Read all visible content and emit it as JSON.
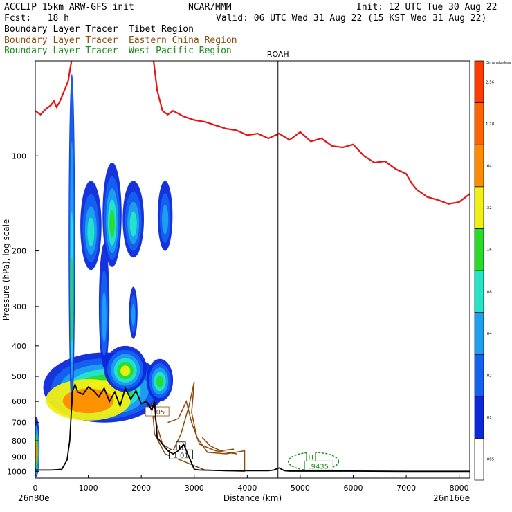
{
  "header": {
    "line1_left": "ACCLIP 15km ARW-GFS init",
    "line1_center": "NCAR/MMM",
    "line1_right": "Init: 12 UTC Tue 30 Aug 22",
    "line2_left": "Fcst:   18 h",
    "line2_right": "Valid: 06 UTC Wed 31 Aug 22 (15 KST Wed 31 Aug 22)"
  },
  "legend": [
    {
      "label": "Boundary Layer Tracer  Tibet Region",
      "color": "#000000"
    },
    {
      "label": "Boundary Layer Tracer  Eastern China Region",
      "color": "#8B4A0C"
    },
    {
      "label": "Boundary Layer Tracer  West Pacific Region",
      "color": "#1E8C1E"
    }
  ],
  "chart_data": {
    "type": "cross-section",
    "xlabel": "Distance (km)",
    "ylabel": "Pressure (hPa), log scale",
    "xlim": [
      0,
      8200
    ],
    "ylim": [
      50,
      1050
    ],
    "x_ticks": [
      "0",
      "1000",
      "2000",
      "3000",
      "4000",
      "5000",
      "6000",
      "7000",
      "8000"
    ],
    "y_ticks": [
      "100",
      "200",
      "300",
      "400",
      "500",
      "600",
      "700",
      "800",
      "900",
      "1000"
    ],
    "start_label": "26n80e",
    "end_label": "26n166e",
    "station_label": "ROAH",
    "station_x_km": 4580,
    "colorbar_title": "Dimensionless",
    "colorbar_labels": [
      ".005",
      ".01",
      ".02",
      ".04",
      ".08",
      ".16",
      ".32",
      ".64",
      "1.28",
      "2.56"
    ],
    "colorbar_colors": [
      "#ffffff",
      "#0a28dc",
      "#1462f0",
      "#1ea0f0",
      "#23e6c8",
      "#28dc28",
      "#f0f014",
      "#ff8c00",
      "#ff6400",
      "#ff3c00"
    ],
    "tropopause_km": [
      0,
      100,
      200,
      300,
      350,
      400,
      450,
      500,
      550,
      620,
      700,
      2220,
      2300,
      2400,
      2500,
      2600,
      2800,
      3000,
      3200,
      3400,
      3600,
      3800,
      4000,
      4200,
      4400,
      4600,
      4800,
      5000,
      5200,
      5400,
      5600,
      5800,
      6000,
      6200,
      6400,
      6600,
      6800,
      7000,
      7100,
      7200,
      7400,
      7600,
      7800,
      8000,
      8200
    ],
    "tropopause_hpa": [
      72,
      74,
      71,
      69,
      67,
      70,
      68,
      65,
      62,
      58,
      48,
      48,
      62,
      72,
      74,
      72,
      75,
      77,
      78,
      80,
      82,
      83,
      86,
      85,
      88,
      85,
      89,
      84,
      90,
      88,
      93,
      94,
      92,
      100,
      105,
      104,
      110,
      114,
      122,
      128,
      135,
      138,
      142,
      140,
      132
    ],
    "terrain_km": [
      0,
      300,
      500,
      600,
      650,
      700,
      750,
      800,
      900,
      1000,
      1100,
      1200,
      1300,
      1400,
      1500,
      1600,
      1700,
      1800,
      1900,
      2000,
      2100,
      2200,
      2250,
      2300,
      2400,
      2500,
      2600,
      2700,
      2800,
      2900,
      3000,
      3100,
      3300,
      3600,
      4000,
      4400,
      4500,
      4600,
      4700,
      4800,
      5000,
      5500,
      6000,
      7000,
      8200
    ],
    "terrain_hpa": [
      990,
      990,
      985,
      920,
      800,
      560,
      530,
      560,
      570,
      540,
      555,
      580,
      545,
      600,
      560,
      620,
      545,
      590,
      555,
      610,
      600,
      640,
      600,
      780,
      820,
      860,
      880,
      860,
      820,
      900,
      985,
      990,
      992,
      995,
      995,
      995,
      990,
      975,
      995,
      998,
      998,
      998,
      998,
      1000,
      1000
    ],
    "contour_labels": [
      "H",
      "1.01",
      "1.05",
      "H",
      ".9435"
    ]
  }
}
